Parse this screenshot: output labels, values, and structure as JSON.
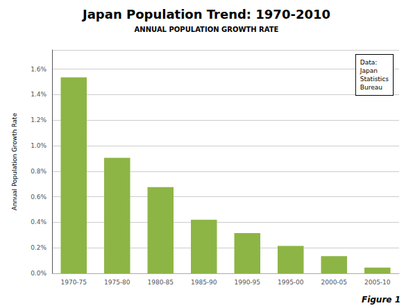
{
  "chart_data": {
    "type": "bar",
    "title": "Japan Population Trend: 1970-2010",
    "subtitle": "ANNUAL POPULATION GROWTH RATE",
    "ylabel": "Annual Population Growth Rate",
    "annotations": [
      "Data:\nJapan\nStatistics\nBureau",
      "Figure 1"
    ],
    "categories": [
      "1970-75",
      "1975-80",
      "1980-85",
      "1985-90",
      "1990-95",
      "1995-00",
      "2000-05",
      "2005-10"
    ],
    "values": [
      0.01535,
      0.00905,
      0.00675,
      0.0042,
      0.00315,
      0.00215,
      0.00135,
      0.00045
    ],
    "color": "#8db545",
    "ylim": [
      0,
      0.0175
    ],
    "yticks": [
      {
        "value": 0.0,
        "label": "0.0%"
      },
      {
        "value": 0.002,
        "label": "0.2%"
      },
      {
        "value": 0.004,
        "label": "0.4%"
      },
      {
        "value": 0.006,
        "label": "0.6%"
      },
      {
        "value": 0.008,
        "label": "0.8%"
      },
      {
        "value": 0.01,
        "label": "1.0%"
      },
      {
        "value": 0.012,
        "label": "1.2%"
      },
      {
        "value": 0.014,
        "label": "1.4%"
      },
      {
        "value": 0.016,
        "label": "1.6%"
      }
    ],
    "grid": true
  }
}
